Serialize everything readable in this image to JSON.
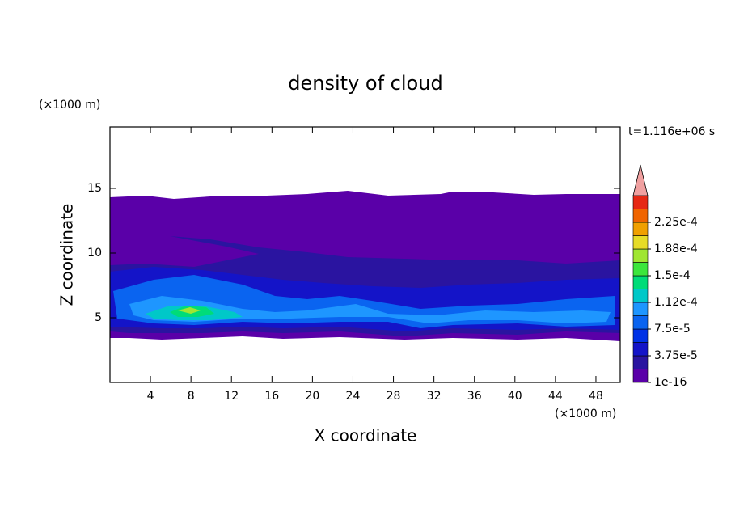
{
  "chart_data": {
    "type": "contour",
    "title": "density of cloud",
    "annotation": "t=1.116e+06 s",
    "xlabel": "X coordinate",
    "ylabel": "Z coordinate",
    "x_unit": "(×1000 m)",
    "y_unit": "(×1000 m)",
    "xlim": [
      0,
      50.4
    ],
    "ylim": [
      0,
      19.75
    ],
    "xticks": [
      4,
      8,
      12,
      16,
      20,
      24,
      28,
      32,
      36,
      40,
      44,
      48
    ],
    "yticks": [
      5,
      10,
      15
    ],
    "colorbar": {
      "colors": [
        "#5a00a8",
        "#2a14a0",
        "#1414c8",
        "#0032e6",
        "#0a64f0",
        "#1e96ff",
        "#00c8c8",
        "#00dc78",
        "#3ce63c",
        "#a0e632",
        "#e6dc28",
        "#f0a000",
        "#f06400",
        "#e62814"
      ],
      "extend_color": "#f0a0a0",
      "ticks": [
        1e-16,
        {
          "value": 3.75e-05,
          "label": "3.75e-5"
        },
        {
          "value": 7.5e-05,
          "label": "7.5e-5"
        },
        {
          "value": 0.000112,
          "label": "1.12e-4"
        },
        {
          "value": 0.00015,
          "label": "1.5e-4"
        },
        {
          "value": 0.000188,
          "label": "1.88e-4"
        },
        {
          "value": 0.000225,
          "label": "2.25e-4"
        }
      ]
    }
  }
}
